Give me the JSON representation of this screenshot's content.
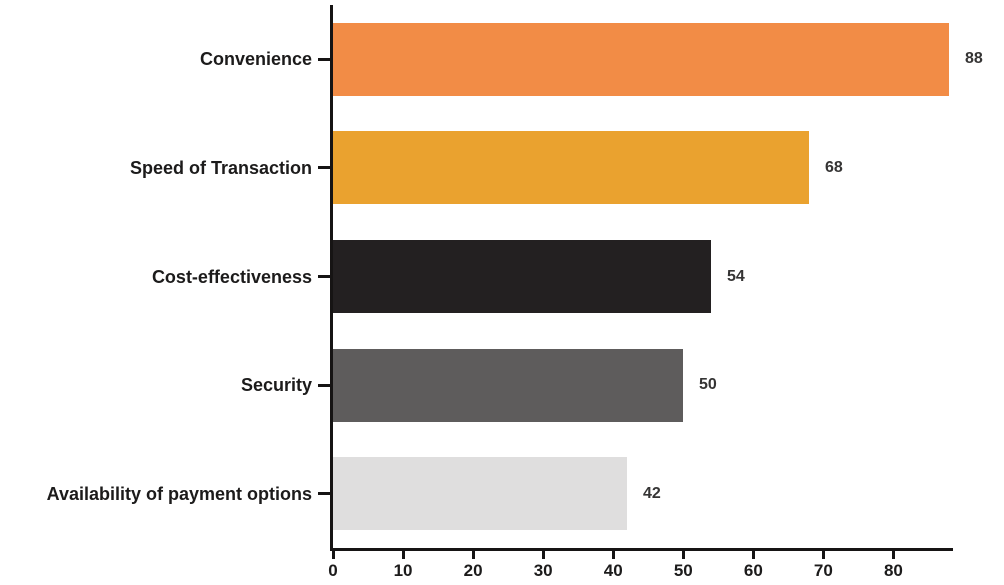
{
  "chart_data": {
    "type": "bar",
    "orientation": "horizontal",
    "title": "",
    "xlabel": "",
    "ylabel": "",
    "categories": [
      "Convenience",
      "Speed of Transaction",
      "Cost-effectiveness",
      "Security",
      "Availability of payment options"
    ],
    "values": [
      88,
      68,
      54,
      50,
      42
    ],
    "value_labels": [
      "88",
      "68",
      "54",
      "50",
      "42"
    ],
    "bar_colors": [
      "#f28c46",
      "#eaa22f",
      "#232021",
      "#5e5c5c",
      "#dfdede"
    ],
    "x_ticks": [
      "0",
      "10",
      "20",
      "30",
      "40",
      "50",
      "60",
      "70",
      "80"
    ],
    "x_tick_values": [
      0,
      10,
      20,
      30,
      40,
      50,
      60,
      70,
      80
    ],
    "xlim": [
      0,
      88.5
    ],
    "grid": false,
    "legend": false,
    "axis_color": "#161414",
    "category_label_color": "#1c1b1b",
    "tick_label_color": "#1c1b1b",
    "value_label_color": "#353434",
    "background": "#ffffff"
  }
}
